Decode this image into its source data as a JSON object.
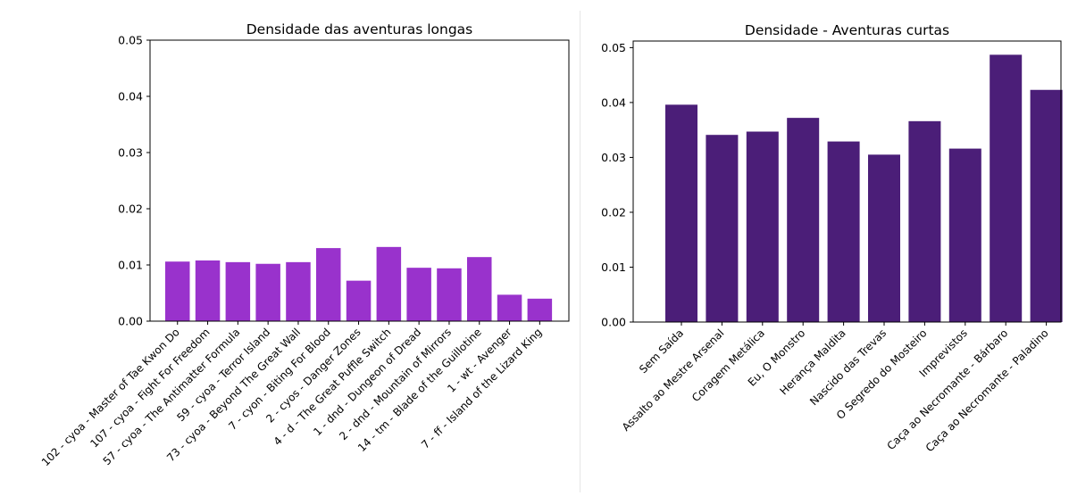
{
  "chart_data": [
    {
      "type": "bar",
      "title": "Densidade das aventuras longas",
      "xlabel": "",
      "ylabel": "",
      "categories": [
        "102 - cyoa - Master of Tae Kwon Do",
        "107 - cyoa - Fight For Freedom",
        "57 - cyoa - The Antimatter Formula",
        "59 - cyoa - Terror Island",
        "73 - cyoa - Beyond The Great Wall",
        "7 - cyon - Biting For Blood",
        "2 - cyos - Danger Zones",
        "4 - d - The Great Puffle Switch",
        "1 - dnd - Dungeon of Dread",
        "2 - dnd - Mountain of Mirrors",
        "14 - tm - Blade of the Guillotine",
        "1 - wt - Avenger",
        "7 - ff - Island of the Lizard King"
      ],
      "values": [
        0.0106,
        0.0108,
        0.0105,
        0.0102,
        0.0105,
        0.013,
        0.0072,
        0.0132,
        0.0095,
        0.0094,
        0.0114,
        0.0047,
        0.004
      ],
      "ylim": [
        0,
        0.05
      ],
      "yticks": [
        "0.00",
        "0.01",
        "0.02",
        "0.03",
        "0.04",
        "0.05"
      ],
      "color": "#9932CC",
      "grid": false
    },
    {
      "type": "bar",
      "title": "Densidade - Aventuras curtas",
      "xlabel": "",
      "ylabel": "",
      "categories": [
        "Sem Saída",
        "Assalto ao Mestre Arsenal",
        "Coragem Metálica",
        "Eu, O Monstro",
        "Herança Maldita",
        "Nascido das Trevas",
        "O Segredo do Mosteiro",
        "Imprevistos",
        "Caça ao Necromante - Bárbaro",
        "Caça ao Necromante - Paladino"
      ],
      "values": [
        0.0396,
        0.0341,
        0.0347,
        0.0372,
        0.0329,
        0.0305,
        0.0366,
        0.0316,
        0.0487,
        0.0423
      ],
      "ylim": [
        0,
        0.0512
      ],
      "yticks": [
        "0.00",
        "0.01",
        "0.02",
        "0.03",
        "0.04",
        "0.05"
      ],
      "color": "#4B1E78",
      "grid": false
    }
  ]
}
